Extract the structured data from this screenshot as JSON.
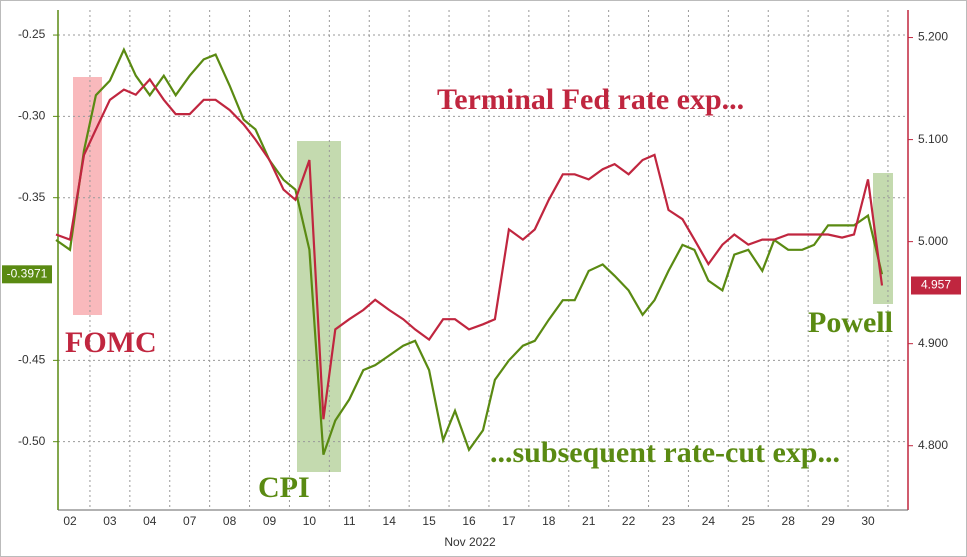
{
  "chart_data": {
    "type": "line",
    "x_label": "Nov 2022",
    "categories": [
      null,
      "02",
      null,
      null,
      "03",
      null,
      null,
      "04",
      null,
      null,
      "07",
      null,
      null,
      "08",
      null,
      null,
      "09",
      null,
      null,
      "10",
      null,
      null,
      "11",
      null,
      null,
      "14",
      null,
      null,
      "15",
      null,
      null,
      "16",
      null,
      null,
      "17",
      null,
      null,
      "18",
      null,
      null,
      "21",
      null,
      null,
      "22",
      null,
      null,
      "23",
      null,
      null,
      "24",
      null,
      null,
      "25",
      null,
      null,
      "28",
      null,
      null,
      "29",
      null,
      null,
      "30",
      null
    ],
    "series": [
      {
        "name": "...subsequent rate-cut exp...",
        "color": "#5a8a12",
        "axis": "y",
        "last_label": "-0.3971",
        "values": [
          -0.376,
          -0.382,
          -0.321,
          -0.287,
          -0.278,
          -0.259,
          -0.275,
          -0.287,
          -0.275,
          -0.287,
          -0.275,
          -0.265,
          -0.262,
          -0.281,
          -0.302,
          -0.308,
          -0.327,
          -0.339,
          -0.345,
          -0.382,
          -0.508,
          -0.487,
          -0.474,
          -0.456,
          -0.453,
          -0.447,
          -0.441,
          -0.438,
          -0.456,
          -0.499,
          -0.481,
          -0.505,
          -0.493,
          -0.462,
          -0.45,
          -0.441,
          -0.438,
          -0.425,
          -0.413,
          -0.413,
          -0.395,
          -0.391,
          -0.398,
          -0.407,
          -0.422,
          -0.413,
          -0.395,
          -0.379,
          -0.382,
          -0.401,
          -0.407,
          -0.385,
          -0.382,
          -0.395,
          -0.376,
          -0.382,
          -0.382,
          -0.379,
          -0.367,
          -0.367,
          -0.367,
          -0.361,
          -0.3971
        ]
      },
      {
        "name": "Terminal Fed rate exp...",
        "color": "#c0263f",
        "axis": "y2",
        "last_label": "4.957",
        "values": [
          5.007,
          5.002,
          5.085,
          5.11,
          5.139,
          5.149,
          5.144,
          5.159,
          5.139,
          5.125,
          5.125,
          5.139,
          5.139,
          5.129,
          5.115,
          5.1,
          5.08,
          5.051,
          5.041,
          5.08,
          4.826,
          4.914,
          4.924,
          4.933,
          4.943,
          4.933,
          4.924,
          4.914,
          4.904,
          4.924,
          4.924,
          4.914,
          4.919,
          4.924,
          5.012,
          5.002,
          5.012,
          5.041,
          5.066,
          5.066,
          5.061,
          5.071,
          5.076,
          5.066,
          5.08,
          5.085,
          5.031,
          5.022,
          5.002,
          4.978,
          4.997,
          5.007,
          4.997,
          5.002,
          5.002,
          5.007,
          5.007,
          5.007,
          5.007,
          5.004,
          5.007,
          5.061,
          4.957
        ]
      }
    ],
    "annotations": [
      "FOMC",
      "CPI",
      "Powell"
    ],
    "ylim": [
      -0.542,
      -0.2346
    ],
    "yticks": [
      {
        "value": -0.25,
        "label": "-0.25"
      },
      {
        "value": -0.3,
        "label": "-0.30"
      },
      {
        "value": -0.35,
        "label": "-0.35"
      },
      {
        "value": -0.45,
        "label": "-0.45"
      },
      {
        "value": -0.5,
        "label": "-0.50"
      }
    ],
    "y2lim": [
      4.737,
      5.227
    ],
    "y2ticks": [
      {
        "value": 4.8,
        "label": "4.800"
      },
      {
        "value": 4.9,
        "label": "4.900"
      },
      {
        "value": 5.0,
        "label": "5.000"
      },
      {
        "value": 5.1,
        "label": "5.100"
      },
      {
        "value": 5.2,
        "label": "5.200"
      }
    ],
    "grid": true
  }
}
